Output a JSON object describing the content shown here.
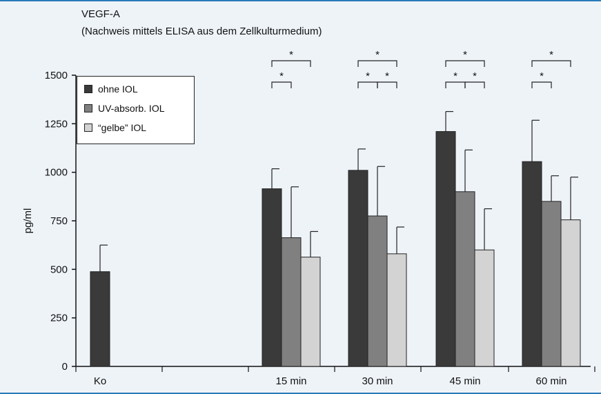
{
  "colors": {
    "background": "#eef3f8",
    "accent_rule": "#2a79b8",
    "axis": "#111111",
    "series": [
      "#3a3a3a",
      "#808080",
      "#d3d3d3"
    ]
  },
  "header": {
    "title": "VEGF-A",
    "subtitle": "(Nachweis mittels ELISA aus dem Zellkulturmedium)"
  },
  "chart_data": {
    "type": "bar",
    "title": "VEGF-A",
    "subtitle": "(Nachweis mittels ELISA aus dem Zellkulturmedium)",
    "xlabel": "",
    "ylabel": "pg/ml",
    "ylim": [
      0,
      1500
    ],
    "yticks": [
      0,
      250,
      500,
      750,
      1000,
      1250,
      1500
    ],
    "grid": false,
    "legend_position": "top-left",
    "categories": [
      "Ko",
      "",
      "15 min",
      "30 min",
      "45 min",
      "60 min"
    ],
    "series": [
      {
        "name": "ohne IOL",
        "values": [
          488,
          null,
          915,
          1010,
          1210,
          1055
        ],
        "errors": [
          137,
          null,
          103,
          110,
          103,
          213
        ]
      },
      {
        "name": "UV-absorb. IOL",
        "values": [
          null,
          null,
          663,
          775,
          900,
          850
        ],
        "errors": [
          null,
          null,
          262,
          255,
          215,
          132
        ]
      },
      {
        "name": "“gelbe” IOL",
        "values": [
          null,
          null,
          563,
          580,
          600,
          755
        ],
        "errors": [
          null,
          null,
          132,
          138,
          212,
          220
        ]
      }
    ],
    "significance": [
      {
        "category": "15 min",
        "pair": [
          0,
          1
        ],
        "label": "*"
      },
      {
        "category": "15 min",
        "pair": [
          0,
          2
        ],
        "label": "*"
      },
      {
        "category": "30 min",
        "pair": [
          0,
          1
        ],
        "label": "*"
      },
      {
        "category": "30 min",
        "pair": [
          1,
          2
        ],
        "label": "*"
      },
      {
        "category": "30 min",
        "pair": [
          0,
          2
        ],
        "label": "*"
      },
      {
        "category": "45 min",
        "pair": [
          0,
          1
        ],
        "label": "*"
      },
      {
        "category": "45 min",
        "pair": [
          1,
          2
        ],
        "label": "*"
      },
      {
        "category": "45 min",
        "pair": [
          0,
          2
        ],
        "label": "*"
      },
      {
        "category": "60 min",
        "pair": [
          0,
          1
        ],
        "label": "*"
      },
      {
        "category": "60 min",
        "pair": [
          0,
          2
        ],
        "label": "*"
      }
    ]
  }
}
